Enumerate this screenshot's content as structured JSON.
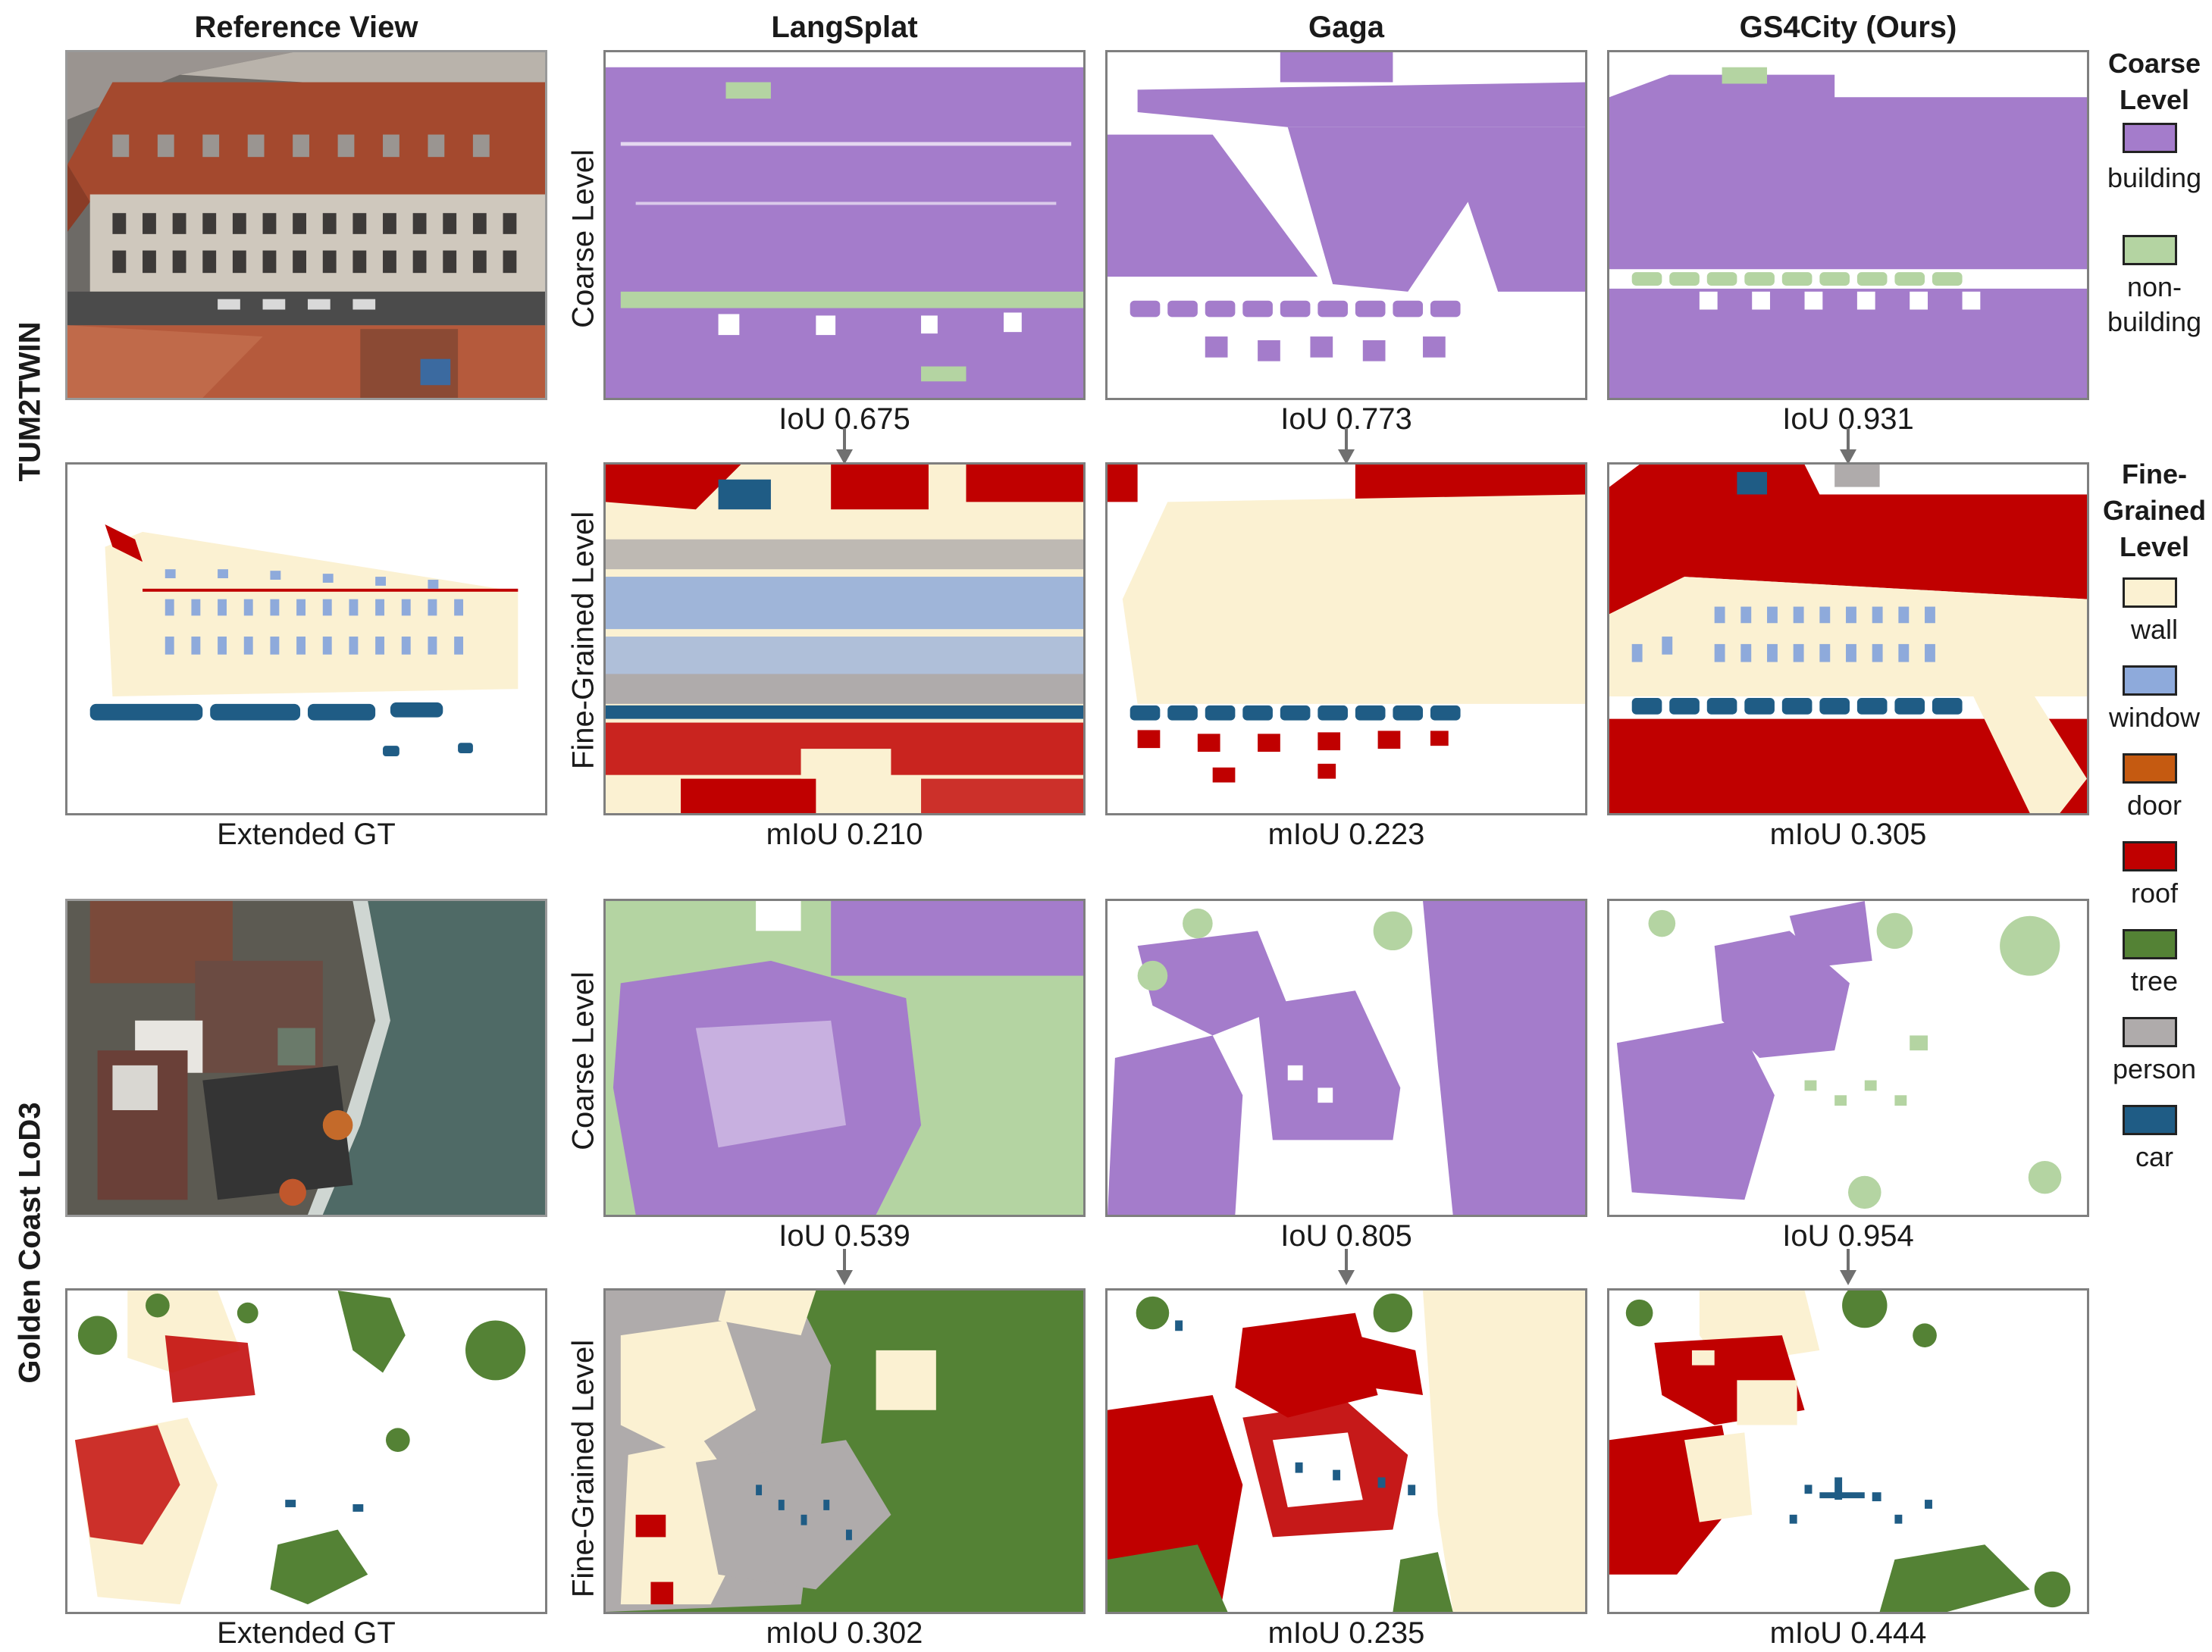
{
  "columns": {
    "reference": "Reference View",
    "langsplat": "LangSplat",
    "gaga": "Gaga",
    "gs4city": "GS4City (Ours)"
  },
  "datasets": {
    "tum2twin": "TUM2TWIN",
    "golden_coast": "Golden Coast LoD3"
  },
  "row_labels": {
    "coarse": "Coarse Level",
    "fine": "Fine-Grained Level"
  },
  "gt_caption": "Extended GT",
  "scores": {
    "tum_coarse": [
      "IoU 0.675",
      "IoU 0.773",
      "IoU 0.931"
    ],
    "tum_fine": [
      "mIoU 0.210",
      "mIoU 0.223",
      "mIoU 0.305"
    ],
    "gc_coarse": [
      "IoU 0.539",
      "IoU 0.805",
      "IoU 0.954"
    ],
    "gc_fine": [
      "mIoU 0.302",
      "mIoU 0.235",
      "mIoU 0.444"
    ]
  },
  "legend": {
    "coarse_title": "Coarse Level",
    "coarse_items": [
      {
        "label": "building",
        "color": "#A47CCB"
      },
      {
        "label": "non-building",
        "color": "#B4D4A2"
      }
    ],
    "fine_title": "Fine-Grained Level",
    "fine_items": [
      {
        "label": "wall",
        "color": "#FBF1D2"
      },
      {
        "label": "window",
        "color": "#8EAADB"
      },
      {
        "label": "door",
        "color": "#C55A11"
      },
      {
        "label": "roof",
        "color": "#C00000"
      },
      {
        "label": "tree",
        "color": "#548235"
      },
      {
        "label": "person",
        "color": "#AFABAB"
      },
      {
        "label": "car",
        "color": "#1F5C85"
      }
    ]
  },
  "colors": {
    "building": "#A47CCB",
    "non_building": "#B4D4A2",
    "wall": "#FBF1D2",
    "window": "#8EAADB",
    "roof": "#C00000",
    "tree": "#548235",
    "person": "#AFABAB",
    "car": "#1F5C85",
    "arrow": "#707070"
  }
}
